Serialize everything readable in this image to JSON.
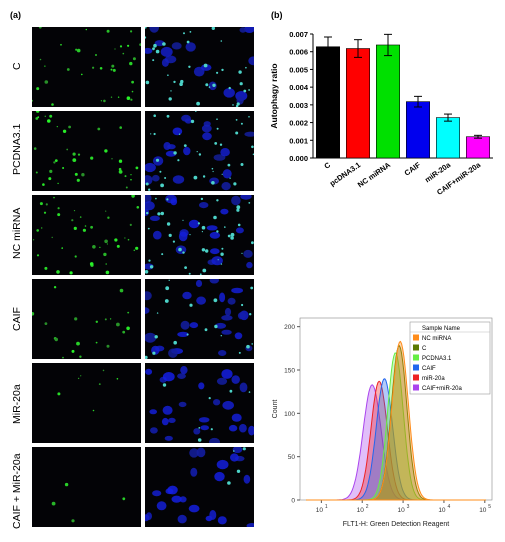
{
  "panel_a": {
    "label": "(a)",
    "rows": [
      {
        "label": "C",
        "green_density": 0.8,
        "blue_density": 0.55
      },
      {
        "label": "PCDNA3.1",
        "green_density": 0.85,
        "blue_density": 0.7
      },
      {
        "label": "NC miRNA",
        "green_density": 1.0,
        "blue_density": 0.8
      },
      {
        "label": "CAIF",
        "green_density": 0.45,
        "blue_density": 0.85
      },
      {
        "label": "MiR-20a",
        "green_density": 0.15,
        "blue_density": 0.9
      },
      {
        "label": "CAIF + MiR-20a",
        "green_density": 0.08,
        "blue_density": 0.75
      }
    ]
  },
  "chart_data": [
    {
      "panel_label": "(b)",
      "type": "bar",
      "categories": [
        "C",
        "pcDNA3.1",
        "NC miRNA",
        "CAIF",
        "miR-20a",
        "CAIF+miR-20a"
      ],
      "values": [
        0.00628,
        0.00618,
        0.00638,
        0.00318,
        0.00228,
        0.0012
      ],
      "errors": [
        0.00055,
        0.0005,
        0.0006,
        0.0003,
        0.0002,
        8e-05
      ],
      "colors": [
        "#000000",
        "#ff0000",
        "#00e000",
        "#0000ee",
        "#00ffff",
        "#ff00ff"
      ],
      "ylabel": "Autophagy ratio",
      "xlabel": "",
      "ylim": [
        0,
        0.007
      ],
      "yticks": [
        "0.000",
        "0.001",
        "0.002",
        "0.003",
        "0.004",
        "0.005",
        "0.006",
        "0.007"
      ]
    },
    {
      "type": "area",
      "xlabel": "FLT1-H: Green Detection Reagent",
      "ylabel": "Count",
      "x_scale": "log",
      "xlim": [
        3,
        150000
      ],
      "ylim": [
        0,
        210
      ],
      "yticks": [
        "0",
        "50",
        "100",
        "150",
        "200"
      ],
      "xticks": [
        {
          "value": 10,
          "label": "10",
          "exp": "1"
        },
        {
          "value": 100,
          "label": "10",
          "exp": "2"
        },
        {
          "value": 1000,
          "label": "10",
          "exp": "3"
        },
        {
          "value": 10000,
          "label": "10",
          "exp": "4"
        },
        {
          "value": 100000,
          "label": "10",
          "exp": "5"
        }
      ],
      "legend_title": "Sample Name",
      "legend_position": "top-right",
      "series": [
        {
          "name": "NC miRNA",
          "color": "#ff8c1a",
          "peak_x": 850,
          "peak_count": 183,
          "width": 0.2
        },
        {
          "name": "C",
          "color": "#5b7a00",
          "peak_x": 800,
          "peak_count": 178,
          "width": 0.19
        },
        {
          "name": "PCDNA3.1",
          "color": "#66ee44",
          "peak_x": 650,
          "peak_count": 170,
          "width": 0.19
        },
        {
          "name": "CAIF",
          "color": "#2266ee",
          "peak_x": 350,
          "peak_count": 140,
          "width": 0.2
        },
        {
          "name": "miR-20a",
          "color": "#ee2222",
          "peak_x": 260,
          "peak_count": 137,
          "width": 0.2
        },
        {
          "name": "CAIF+miR-20a",
          "color": "#aa44ee",
          "peak_x": 175,
          "peak_count": 133,
          "width": 0.22
        }
      ]
    }
  ]
}
